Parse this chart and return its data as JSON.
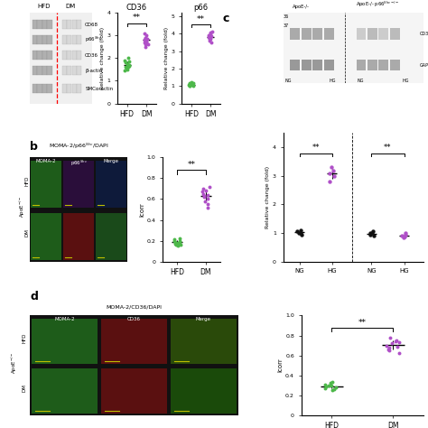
{
  "cd36_hfd": [
    1.55,
    1.65,
    1.7,
    1.75,
    1.8,
    1.6,
    1.9,
    1.85,
    1.5,
    2.0,
    1.45,
    1.7,
    1.6
  ],
  "cd36_dm": [
    2.5,
    2.7,
    2.8,
    2.9,
    2.75,
    3.0,
    2.6,
    2.85,
    3.1,
    2.8,
    2.9,
    2.7,
    2.6
  ],
  "cd36_hfd_mean": 1.7,
  "cd36_dm_mean": 2.8,
  "p66_hfd": [
    1.0,
    1.1,
    1.15,
    1.05,
    1.2,
    1.0,
    1.1,
    1.15,
    1.0,
    1.05,
    1.1,
    1.15
  ],
  "p66_dm": [
    3.5,
    3.7,
    3.8,
    4.0,
    3.9,
    4.1,
    3.6,
    3.85,
    3.75,
    3.9,
    4.05,
    3.7
  ],
  "p66_hfd_mean": 1.08,
  "p66_dm_mean": 3.82,
  "b_hfd_icorr": [
    0.16,
    0.18,
    0.2,
    0.22,
    0.15,
    0.19,
    0.21,
    0.17,
    0.2,
    0.16,
    0.18,
    0.19
  ],
  "b_dm_icorr": [
    0.52,
    0.58,
    0.62,
    0.68,
    0.7,
    0.6,
    0.65,
    0.72,
    0.55,
    0.63,
    0.67,
    0.64
  ],
  "b_hfd_mean": 0.185,
  "b_dm_mean": 0.63,
  "c_ng1": [
    1.0,
    1.1,
    0.95,
    1.05,
    1.0
  ],
  "c_hg1": [
    2.8,
    3.0,
    3.2,
    3.3,
    3.1
  ],
  "c_ng2": [
    1.0,
    0.95,
    1.05,
    1.0,
    0.9
  ],
  "c_hg2": [
    0.85,
    0.9,
    0.95,
    1.0,
    0.88
  ],
  "c_ng1_mean": 1.02,
  "c_hg1_mean": 3.08,
  "c_ng2_mean": 0.98,
  "c_hg2_mean": 0.916,
  "d_hfd_icorr": [
    0.28,
    0.3,
    0.25,
    0.32,
    0.27,
    0.29,
    0.31,
    0.26,
    0.3,
    0.33
  ],
  "d_dm_icorr": [
    0.62,
    0.68,
    0.72,
    0.75,
    0.65,
    0.7,
    0.78,
    0.66,
    0.73,
    0.69,
    0.74
  ],
  "d_hfd_mean": 0.291,
  "d_dm_mean": 0.702,
  "green_color": "#4db84a",
  "purple_color": "#b050c8",
  "black_color": "#000000"
}
